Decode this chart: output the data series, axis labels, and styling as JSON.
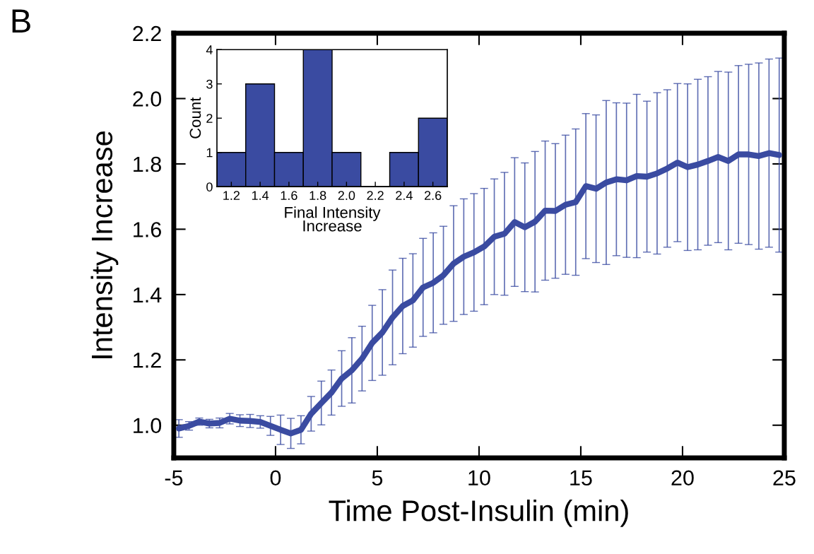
{
  "chart_data": [
    {
      "type": "line",
      "xlabel": "Time Post-Insulin (min)",
      "ylabel": "Intensity Increase",
      "annotations": [
        "B"
      ],
      "x": [
        -4.75,
        -4.25,
        -3.75,
        -3.25,
        -2.75,
        -2.25,
        -1.75,
        -1.25,
        -0.75,
        -0.25,
        0.25,
        0.75,
        1.25,
        1.75,
        2.25,
        2.75,
        3.25,
        3.75,
        4.25,
        4.75,
        5.25,
        5.75,
        6.25,
        6.75,
        7.25,
        7.75,
        8.25,
        8.75,
        9.25,
        9.75,
        10.25,
        10.75,
        11.25,
        11.75,
        12.25,
        12.75,
        13.25,
        13.75,
        14.25,
        14.75,
        15.25,
        15.75,
        16.25,
        16.75,
        17.25,
        17.75,
        18.25,
        18.75,
        19.25,
        19.75,
        20.25,
        20.75,
        21.25,
        21.75,
        22.25,
        22.75,
        23.25,
        23.75,
        24.25,
        24.75
      ],
      "series": [
        {
          "color": "#3a4ba1",
          "values": [
            0.99,
            0.998,
            1.011,
            1.005,
            1.007,
            1.02,
            1.014,
            1.013,
            1.01,
            0.998,
            0.986,
            0.975,
            0.986,
            1.035,
            1.068,
            1.1,
            1.143,
            1.168,
            1.204,
            1.252,
            1.284,
            1.33,
            1.365,
            1.382,
            1.422,
            1.436,
            1.459,
            1.495,
            1.516,
            1.529,
            1.547,
            1.577,
            1.586,
            1.622,
            1.606,
            1.623,
            1.657,
            1.656,
            1.675,
            1.683,
            1.732,
            1.724,
            1.743,
            1.753,
            1.75,
            1.763,
            1.761,
            1.771,
            1.786,
            1.804,
            1.79,
            1.798,
            1.809,
            1.821,
            1.809,
            1.829,
            1.829,
            1.824,
            1.833,
            1.827
          ],
          "errors": [
            0.027,
            0.013,
            0.011,
            0.013,
            0.015,
            0.016,
            0.018,
            0.02,
            0.019,
            0.029,
            0.045,
            0.046,
            0.043,
            0.053,
            0.067,
            0.069,
            0.085,
            0.1,
            0.099,
            0.115,
            0.131,
            0.145,
            0.146,
            0.143,
            0.15,
            0.153,
            0.15,
            0.177,
            0.177,
            0.18,
            0.178,
            0.177,
            0.188,
            0.197,
            0.197,
            0.215,
            0.213,
            0.206,
            0.213,
            0.224,
            0.222,
            0.226,
            0.251,
            0.234,
            0.236,
            0.25,
            0.231,
            0.247,
            0.241,
            0.242,
            0.255,
            0.261,
            0.258,
            0.262,
            0.272,
            0.272,
            0.276,
            0.285,
            0.288,
            0.297
          ]
        }
      ],
      "xlim": [
        -5,
        25
      ],
      "xticks": [
        {
          "value": -5,
          "label": "-5"
        },
        0,
        5,
        10,
        15,
        20,
        25
      ],
      "ylim": [
        0.9,
        2.2
      ],
      "yticks": [
        {
          "value": 1.0,
          "label": "1.0"
        },
        {
          "value": 1.2,
          "label": "1.2"
        },
        {
          "value": 1.4,
          "label": "1.4"
        },
        {
          "value": 1.6,
          "label": "1.6"
        },
        {
          "value": 1.8,
          "label": "1.8"
        },
        {
          "value": 2.0,
          "label": "2.0"
        },
        {
          "value": 2.2,
          "label": "2.2"
        }
      ]
    },
    {
      "type": "histogram",
      "xlabel": "Final Intensity\nIncrease",
      "ylabel": "Count",
      "color": "#3a4ba1",
      "bins": [
        1.1,
        1.3,
        1.5,
        1.7,
        1.9,
        2.1,
        2.3,
        2.5,
        2.7
      ],
      "values": [
        1,
        3,
        1,
        4,
        1,
        0,
        1,
        2
      ],
      "xlim": [
        1.1,
        2.7
      ],
      "xticks": [
        {
          "value": 1.2,
          "label": "1.2"
        },
        {
          "value": 1.4,
          "label": "1.4"
        },
        {
          "value": 1.6,
          "label": "1.6"
        },
        {
          "value": 1.8,
          "label": "1.8"
        },
        {
          "value": 2.0,
          "label": "2.0"
        },
        {
          "value": 2.2,
          "label": "2.2"
        },
        {
          "value": 2.4,
          "label": "2.4"
        },
        {
          "value": 2.6,
          "label": "2.6"
        }
      ],
      "ylim": [
        0,
        4
      ],
      "yticks": [
        0,
        1,
        2,
        3,
        4
      ]
    }
  ]
}
